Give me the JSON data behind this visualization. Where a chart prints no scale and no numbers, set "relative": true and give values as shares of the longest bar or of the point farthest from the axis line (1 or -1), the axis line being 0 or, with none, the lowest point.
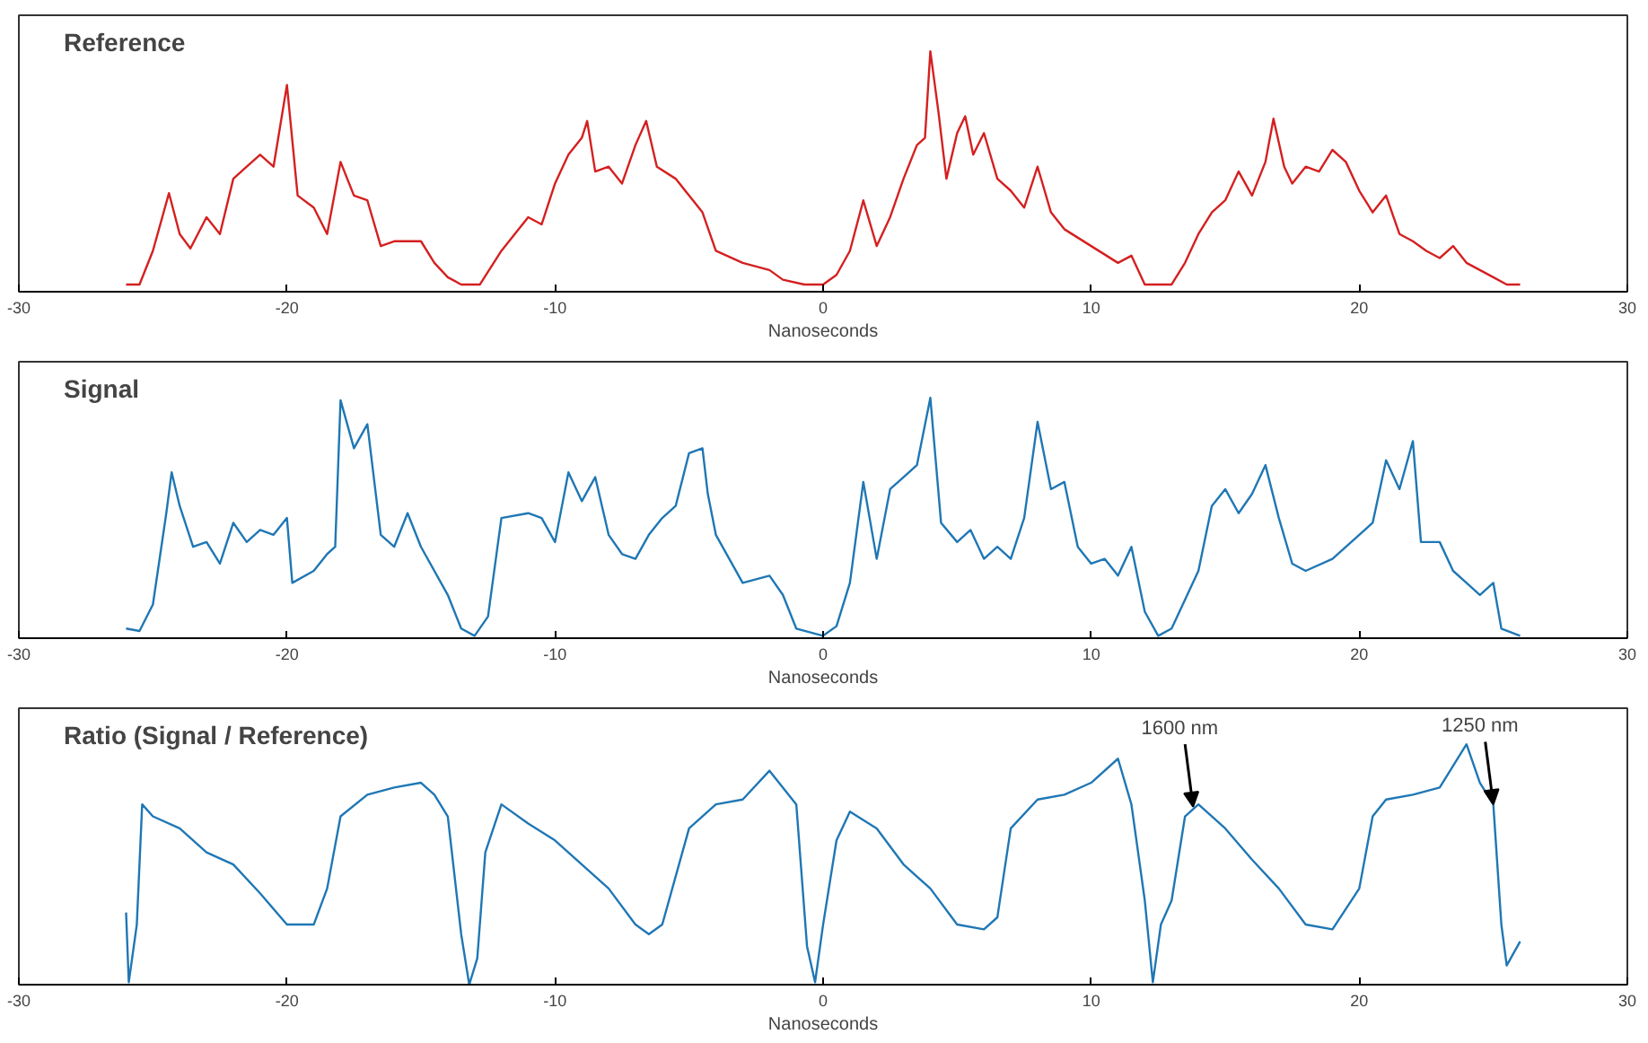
{
  "chart_data": [
    {
      "type": "line",
      "title": "Reference",
      "xlabel": "Nanoseconds",
      "relative": true,
      "xlim": [
        -30,
        30
      ],
      "xticks": [
        -30,
        -20,
        -10,
        0,
        10,
        20,
        30
      ],
      "grid": false,
      "series": [
        {
          "color": "#d42020",
          "x": [
            -26,
            -25.5,
            -25,
            -24.4,
            -24,
            -23.6,
            -23,
            -22.5,
            -22,
            -21.5,
            -21,
            -20.5,
            -20,
            -19.6,
            -19,
            -18.5,
            -18,
            -17.5,
            -17,
            -16.5,
            -16,
            -15,
            -14.5,
            -14,
            -13.5,
            -12.8,
            -12,
            -11,
            -10.5,
            -10,
            -9.5,
            -9,
            -8.8,
            -8.5,
            -8,
            -7.5,
            -7,
            -6.6,
            -6.2,
            -5.5,
            -5,
            -4.5,
            -4,
            -3,
            -2,
            -1.5,
            -0.7,
            0,
            0.5,
            1,
            1.5,
            2,
            2.5,
            3,
            3.5,
            3.8,
            4,
            4.3,
            4.6,
            5,
            5.3,
            5.6,
            6,
            6.5,
            7,
            7.5,
            8,
            8.5,
            9,
            10,
            11,
            11.5,
            12,
            13,
            13.5,
            14,
            14.5,
            15,
            15.5,
            16,
            16.5,
            16.8,
            17.2,
            17.5,
            18,
            18.5,
            19,
            19.5,
            20,
            20.5,
            21,
            21.5,
            22,
            22.5,
            23,
            23.5,
            24,
            24.5,
            25,
            25.5,
            26
          ],
          "values": [
            0.03,
            0.03,
            0.17,
            0.41,
            0.24,
            0.18,
            0.31,
            0.24,
            0.47,
            0.52,
            0.57,
            0.52,
            0.86,
            0.4,
            0.35,
            0.24,
            0.54,
            0.4,
            0.38,
            0.19,
            0.21,
            0.21,
            0.12,
            0.06,
            0.03,
            0.03,
            0.17,
            0.31,
            0.28,
            0.45,
            0.57,
            0.64,
            0.71,
            0.5,
            0.52,
            0.45,
            0.61,
            0.71,
            0.52,
            0.47,
            0.4,
            0.33,
            0.17,
            0.12,
            0.09,
            0.05,
            0.03,
            0.03,
            0.07,
            0.17,
            0.38,
            0.19,
            0.31,
            0.47,
            0.61,
            0.64,
            1.0,
            0.75,
            0.47,
            0.66,
            0.73,
            0.57,
            0.66,
            0.47,
            0.42,
            0.35,
            0.52,
            0.33,
            0.26,
            0.19,
            0.12,
            0.15,
            0.03,
            0.03,
            0.12,
            0.24,
            0.33,
            0.38,
            0.5,
            0.4,
            0.54,
            0.72,
            0.52,
            0.45,
            0.52,
            0.5,
            0.59,
            0.54,
            0.42,
            0.33,
            0.4,
            0.24,
            0.21,
            0.17,
            0.14,
            0.19,
            0.12,
            0.09,
            0.06,
            0.03,
            0.03
          ]
        }
      ]
    },
    {
      "type": "line",
      "title": "Signal",
      "xlabel": "Nanoseconds",
      "relative": true,
      "xlim": [
        -30,
        30
      ],
      "xticks": [
        -30,
        -20,
        -10,
        0,
        10,
        20,
        30
      ],
      "grid": false,
      "series": [
        {
          "color": "#1f77b4",
          "x": [
            -26,
            -25.5,
            -25,
            -24.5,
            -24.3,
            -24,
            -23.5,
            -23,
            -22.5,
            -22,
            -21.5,
            -21,
            -20.5,
            -20,
            -19.8,
            -19,
            -18.5,
            -18.2,
            -18,
            -17.5,
            -17,
            -16.5,
            -16,
            -15.5,
            -15,
            -14,
            -13.5,
            -13,
            -12.5,
            -12,
            -11,
            -10.5,
            -10,
            -9.5,
            -9,
            -8.5,
            -8,
            -7.5,
            -7,
            -6.5,
            -6,
            -5.5,
            -5,
            -4.5,
            -4.3,
            -4,
            -3.5,
            -3,
            -2,
            -1.5,
            -1,
            0,
            0.5,
            1,
            1.5,
            2,
            2.5,
            3,
            3.5,
            4,
            4.4,
            5,
            5.5,
            6,
            6.5,
            7,
            7.5,
            8,
            8.5,
            9,
            9.5,
            10,
            10.5,
            11,
            11.5,
            12,
            12.5,
            13,
            14,
            14.5,
            15,
            15.5,
            16,
            16.5,
            17,
            17.5,
            18,
            19,
            20,
            20.5,
            21,
            21.5,
            22,
            22.3,
            23,
            23.5,
            24,
            24.5,
            25,
            25.3,
            26
          ],
          "values": [
            0.04,
            0.03,
            0.14,
            0.52,
            0.69,
            0.55,
            0.38,
            0.4,
            0.31,
            0.48,
            0.4,
            0.45,
            0.43,
            0.5,
            0.23,
            0.28,
            0.35,
            0.38,
            0.99,
            0.79,
            0.89,
            0.43,
            0.38,
            0.52,
            0.38,
            0.18,
            0.04,
            0.01,
            0.09,
            0.5,
            0.52,
            0.5,
            0.4,
            0.69,
            0.57,
            0.67,
            0.43,
            0.35,
            0.33,
            0.43,
            0.5,
            0.55,
            0.77,
            0.79,
            0.6,
            0.43,
            0.33,
            0.23,
            0.26,
            0.18,
            0.04,
            0.01,
            0.05,
            0.23,
            0.65,
            0.33,
            0.62,
            0.67,
            0.72,
            1.0,
            0.48,
            0.4,
            0.45,
            0.33,
            0.38,
            0.33,
            0.5,
            0.9,
            0.62,
            0.65,
            0.38,
            0.31,
            0.33,
            0.26,
            0.38,
            0.11,
            0.01,
            0.04,
            0.28,
            0.55,
            0.62,
            0.52,
            0.6,
            0.72,
            0.5,
            0.31,
            0.28,
            0.33,
            0.43,
            0.48,
            0.74,
            0.62,
            0.82,
            0.4,
            0.4,
            0.28,
            0.23,
            0.18,
            0.23,
            0.04,
            0.01
          ]
        }
      ]
    },
    {
      "type": "line",
      "title": "Ratio (Signal / Reference)",
      "xlabel": "Nanoseconds",
      "relative": true,
      "xlim": [
        -30,
        30
      ],
      "xticks": [
        -30,
        -20,
        -10,
        0,
        10,
        20,
        30
      ],
      "grid": false,
      "annotations": [
        {
          "text": "1600 nm",
          "x": 13.8,
          "y": 0.74
        },
        {
          "text": "1250 nm",
          "x": 25,
          "y": 0.75
        }
      ],
      "series": [
        {
          "color": "#1f77b4",
          "x": [
            -26,
            -25.9,
            -25.6,
            -25.4,
            -25,
            -24,
            -23,
            -22,
            -21,
            -20,
            -19,
            -18.5,
            -18,
            -17,
            -16,
            -15,
            -14.5,
            -14,
            -13.5,
            -13.2,
            -12.9,
            -12.6,
            -12,
            -11,
            -10,
            -9,
            -8,
            -7,
            -6.5,
            -6,
            -5,
            -4,
            -3,
            -2,
            -1,
            -0.6,
            -0.3,
            0,
            0.5,
            1,
            2,
            3,
            4,
            5,
            6,
            6.5,
            7,
            8,
            9,
            10,
            11,
            11.5,
            12,
            12.3,
            12.6,
            13,
            13.5,
            14,
            15,
            16,
            17,
            18,
            19,
            20,
            20.5,
            21,
            22,
            23,
            24,
            24.5,
            25,
            25.3,
            25.5,
            26
          ],
          "values": [
            0.3,
            0.01,
            0.25,
            0.75,
            0.7,
            0.65,
            0.55,
            0.5,
            0.38,
            0.25,
            0.25,
            0.4,
            0.7,
            0.79,
            0.82,
            0.84,
            0.79,
            0.7,
            0.21,
            0.0,
            0.11,
            0.55,
            0.75,
            0.67,
            0.6,
            0.5,
            0.4,
            0.25,
            0.21,
            0.25,
            0.65,
            0.75,
            0.77,
            0.89,
            0.75,
            0.16,
            0.01,
            0.25,
            0.6,
            0.72,
            0.65,
            0.5,
            0.4,
            0.25,
            0.23,
            0.28,
            0.65,
            0.77,
            0.79,
            0.84,
            0.94,
            0.75,
            0.35,
            0.01,
            0.25,
            0.35,
            0.7,
            0.75,
            0.65,
            0.52,
            0.4,
            0.25,
            0.23,
            0.4,
            0.7,
            0.77,
            0.79,
            0.82,
            1.0,
            0.84,
            0.75,
            0.25,
            0.08,
            0.18
          ]
        }
      ]
    }
  ]
}
